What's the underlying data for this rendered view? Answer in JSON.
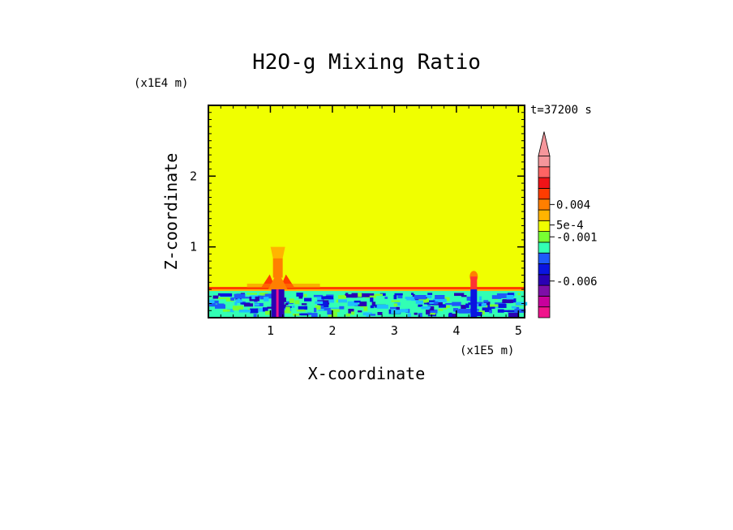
{
  "chart_data": {
    "type": "heatmap",
    "title": "H2O-g Mixing Ratio",
    "xlabel": "X-coordinate",
    "ylabel": "Z-coordinate",
    "x_scale_label": "(x1E5 m)",
    "y_scale_label": "(x1E4 m)",
    "time_label": "t=37200 s",
    "xlim": [
      0,
      5.1
    ],
    "ylim": [
      0,
      3.0
    ],
    "x_ticks": [
      {
        "value": 1,
        "label": "1"
      },
      {
        "value": 2,
        "label": "2"
      },
      {
        "value": 3,
        "label": "3"
      },
      {
        "value": 4,
        "label": "4"
      },
      {
        "value": 5,
        "label": "5"
      }
    ],
    "y_ticks": [
      {
        "value": 1,
        "label": "1"
      },
      {
        "value": 2,
        "label": "2"
      }
    ],
    "background_level_color": "#f0ff00",
    "boundary_layer_top": 0.4,
    "features": [
      {
        "name": "plume-1",
        "x": 1.12,
        "top": 1.0,
        "color": "#ff7f00"
      },
      {
        "name": "plume-2",
        "x": 4.28,
        "top": 0.65,
        "color": "#ff3333"
      }
    ],
    "colorbar": {
      "colors": [
        "#f0148c",
        "#c8009c",
        "#7d0ea8",
        "#2a00b4",
        "#0a14e0",
        "#1e5afa",
        "#32ffb4",
        "#78ff32",
        "#f0ff00",
        "#ffb400",
        "#ff7f00",
        "#ff3c00",
        "#f01418",
        "#ff6464",
        "#f5969b"
      ],
      "labels": [
        {
          "text": "0.004",
          "level": 10.5
        },
        {
          "text": "5e-4",
          "level": 8.6
        },
        {
          "text": "-0.001",
          "level": 7.5
        },
        {
          "text": "-0.006",
          "level": 3.4
        }
      ]
    }
  }
}
